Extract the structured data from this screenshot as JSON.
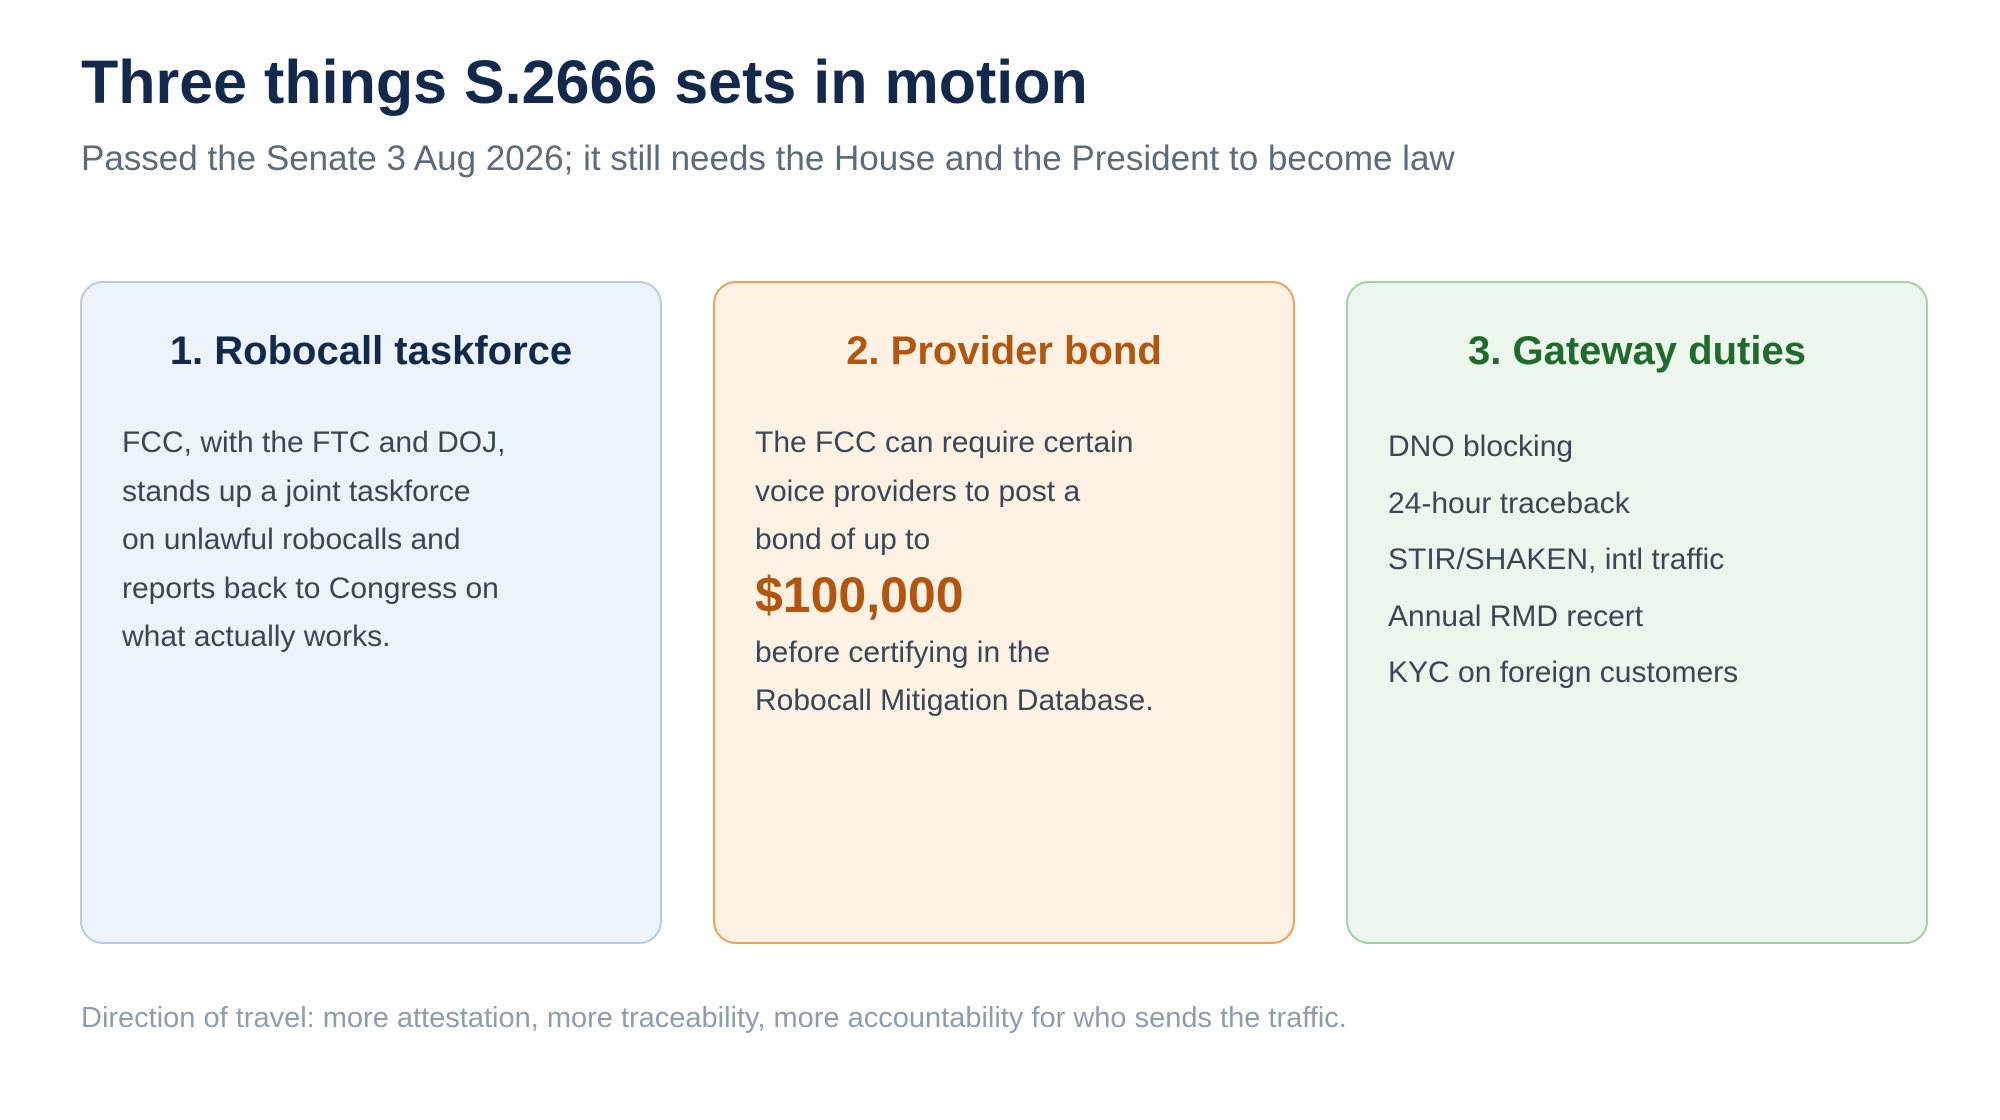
{
  "header": {
    "title": "Three things S.2666 sets in motion",
    "subtitle": "Passed the Senate 3 Aug 2026; it still needs the House and the President to become law"
  },
  "cards": [
    {
      "title": "1. Robocall taskforce",
      "lines": [
        "FCC, with the FTC and DOJ,",
        "stands up a joint taskforce",
        "on unlawful robocalls and",
        "reports back to Congress on",
        "what actually works."
      ]
    },
    {
      "title": "2. Provider bond",
      "lines_before": [
        "The FCC can require certain",
        "voice providers to post a",
        "bond of up to"
      ],
      "amount": "$100,000",
      "lines_after": [
        "before certifying in the",
        "Robocall Mitigation Database."
      ]
    },
    {
      "title": "3. Gateway duties",
      "items": [
        "DNO blocking",
        "24-hour traceback",
        "STIR/SHAKEN, intl traffic",
        "Annual RMD recert",
        "KYC on foreign customers"
      ]
    }
  ],
  "footer": {
    "note": "Direction of travel: more attestation, more traceability, more accountability for who sends the traffic."
  },
  "colors": {
    "title": "#13294b",
    "card_1_accent": "#13294b",
    "card_2_accent": "#b2560f",
    "card_3_accent": "#1e6b2c",
    "card_1_background": "#edf3fb",
    "card_2_background": "#fff1e4",
    "card_3_background": "#edf6ec"
  }
}
